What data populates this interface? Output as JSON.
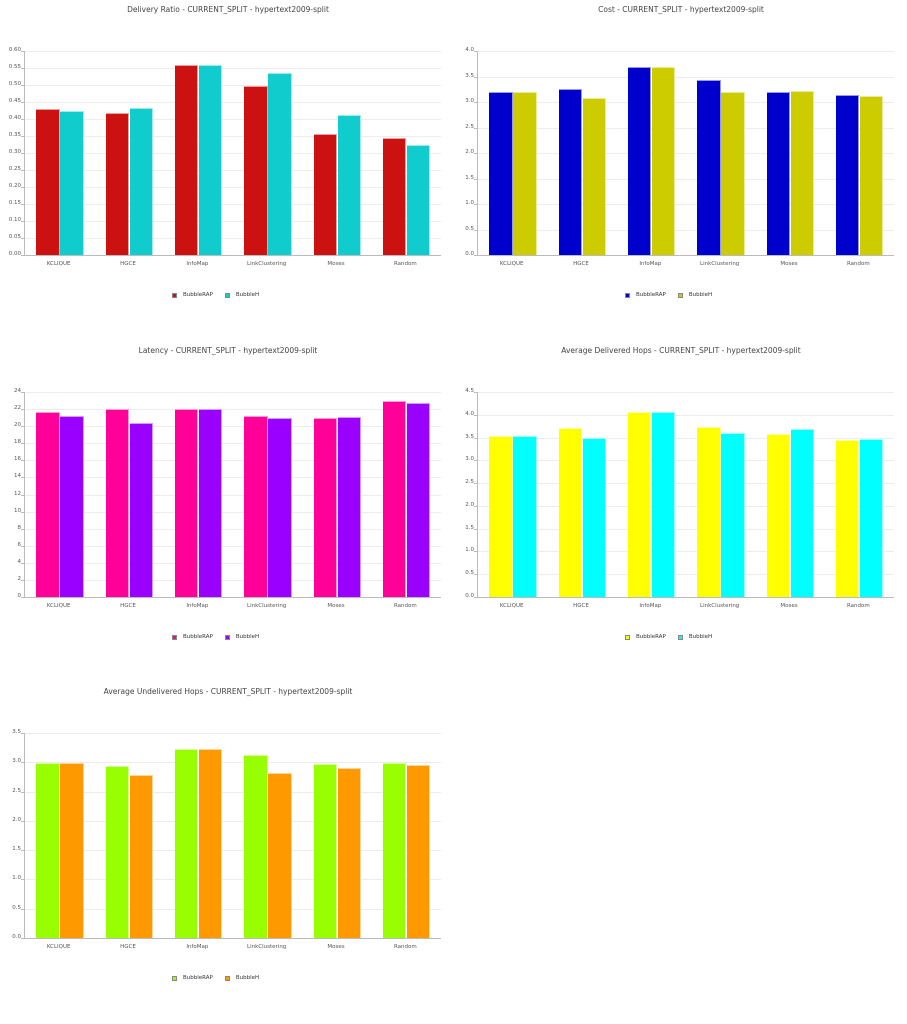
{
  "chart_data": [
    {
      "id": "delivery",
      "type": "bar",
      "title": "Delivery Ratio - CURRENT_SPLIT - hypertext2009-split",
      "xlabel": "",
      "ylabel": "",
      "categories": [
        "KCLIQUE",
        "HGCE",
        "InfoMap",
        "LinkClustering",
        "Moses",
        "Random"
      ],
      "series": [
        {
          "name": "BubbleRAP",
          "color": "#cc1111",
          "values": [
            0.428,
            0.418,
            0.56,
            0.497,
            0.357,
            0.343
          ]
        },
        {
          "name": "BubbleH",
          "color": "#11cccc",
          "values": [
            0.424,
            0.431,
            0.56,
            0.536,
            0.412,
            0.324
          ]
        }
      ],
      "ylim": [
        0,
        0.6
      ],
      "yticks": [
        "0.00",
        "0.05",
        "0.10",
        "0.15",
        "0.20",
        "0.25",
        "0.30",
        "0.35",
        "0.40",
        "0.45",
        "0.50",
        "0.55",
        "0.60"
      ],
      "grid": true,
      "legend_position": "bottom"
    },
    {
      "id": "cost",
      "type": "bar",
      "title": "Cost - CURRENT_SPLIT - hypertext2009-split",
      "xlabel": "",
      "ylabel": "",
      "categories": [
        "KCLIQUE",
        "HGCE",
        "InfoMap",
        "LinkClustering",
        "Moses",
        "Random"
      ],
      "series": [
        {
          "name": "BubbleRAP",
          "color": "#0000cc",
          "values": [
            3.19,
            3.26,
            3.69,
            3.43,
            3.19,
            3.14
          ]
        },
        {
          "name": "BubbleH",
          "color": "#cccc00",
          "values": [
            3.19,
            3.08,
            3.69,
            3.19,
            3.22,
            3.12
          ]
        }
      ],
      "ylim": [
        0,
        4.0
      ],
      "yticks": [
        "0.0",
        "0.5",
        "1.0",
        "1.5",
        "2.0",
        "2.5",
        "3.0",
        "3.5",
        "4.0"
      ],
      "grid": true,
      "legend_position": "bottom"
    },
    {
      "id": "latency",
      "type": "bar",
      "title": "Latency - CURRENT_SPLIT - hypertext2009-split",
      "xlabel": "",
      "ylabel": "",
      "categories": [
        "KCLIQUE",
        "HGCE",
        "InfoMap",
        "LinkClustering",
        "Moses",
        "Random"
      ],
      "series": [
        {
          "name": "BubbleRAP",
          "color": "#ff0099",
          "values": [
            21.65,
            21.96,
            22.04,
            21.14,
            20.98,
            22.94
          ]
        },
        {
          "name": "BubbleH",
          "color": "#9900ff",
          "values": [
            21.2,
            20.4,
            22.04,
            20.98,
            21.06,
            22.7
          ]
        }
      ],
      "ylim": [
        0,
        24
      ],
      "yticks": [
        "0",
        "2",
        "4",
        "6",
        "8",
        "10",
        "12",
        "14",
        "16",
        "18",
        "20",
        "22",
        "24"
      ],
      "grid": true,
      "legend_position": "bottom"
    },
    {
      "id": "delivered_hops",
      "type": "bar",
      "title": "Average Delivered Hops - CURRENT_SPLIT - hypertext2009-split",
      "xlabel": "",
      "ylabel": "",
      "categories": [
        "KCLIQUE",
        "HGCE",
        "InfoMap",
        "LinkClustering",
        "Moses",
        "Random"
      ],
      "series": [
        {
          "name": "BubbleRAP",
          "color": "#ffff00",
          "values": [
            3.53,
            3.72,
            4.06,
            3.74,
            3.58,
            3.45
          ]
        },
        {
          "name": "BubbleH",
          "color": "#00ffff",
          "values": [
            3.53,
            3.49,
            4.06,
            3.61,
            3.68,
            3.46
          ]
        }
      ],
      "ylim": [
        0,
        4.5
      ],
      "yticks": [
        "0.0",
        "0.5",
        "1.0",
        "1.5",
        "2.0",
        "2.5",
        "3.0",
        "3.5",
        "4.0",
        "4.5"
      ],
      "grid": true,
      "legend_position": "bottom"
    },
    {
      "id": "undelivered_hops",
      "type": "bar",
      "title": "Average Undelivered Hops - CURRENT_SPLIT - hypertext2009-split",
      "xlabel": "",
      "ylabel": "",
      "categories": [
        "KCLIQUE",
        "HGCE",
        "InfoMap",
        "LinkClustering",
        "Moses",
        "Random"
      ],
      "series": [
        {
          "name": "BubbleRAP",
          "color": "#99ff00",
          "values": [
            2.99,
            2.94,
            3.23,
            3.12,
            2.97,
            2.98
          ]
        },
        {
          "name": "BubbleH",
          "color": "#ff9900",
          "values": [
            2.99,
            2.78,
            3.23,
            2.82,
            2.9,
            2.95
          ]
        }
      ],
      "ylim": [
        0,
        3.5
      ],
      "yticks": [
        "0.0",
        "0.5",
        "1.0",
        "1.5",
        "2.0",
        "2.5",
        "3.0",
        "3.5"
      ],
      "grid": true,
      "legend_position": "bottom"
    }
  ]
}
